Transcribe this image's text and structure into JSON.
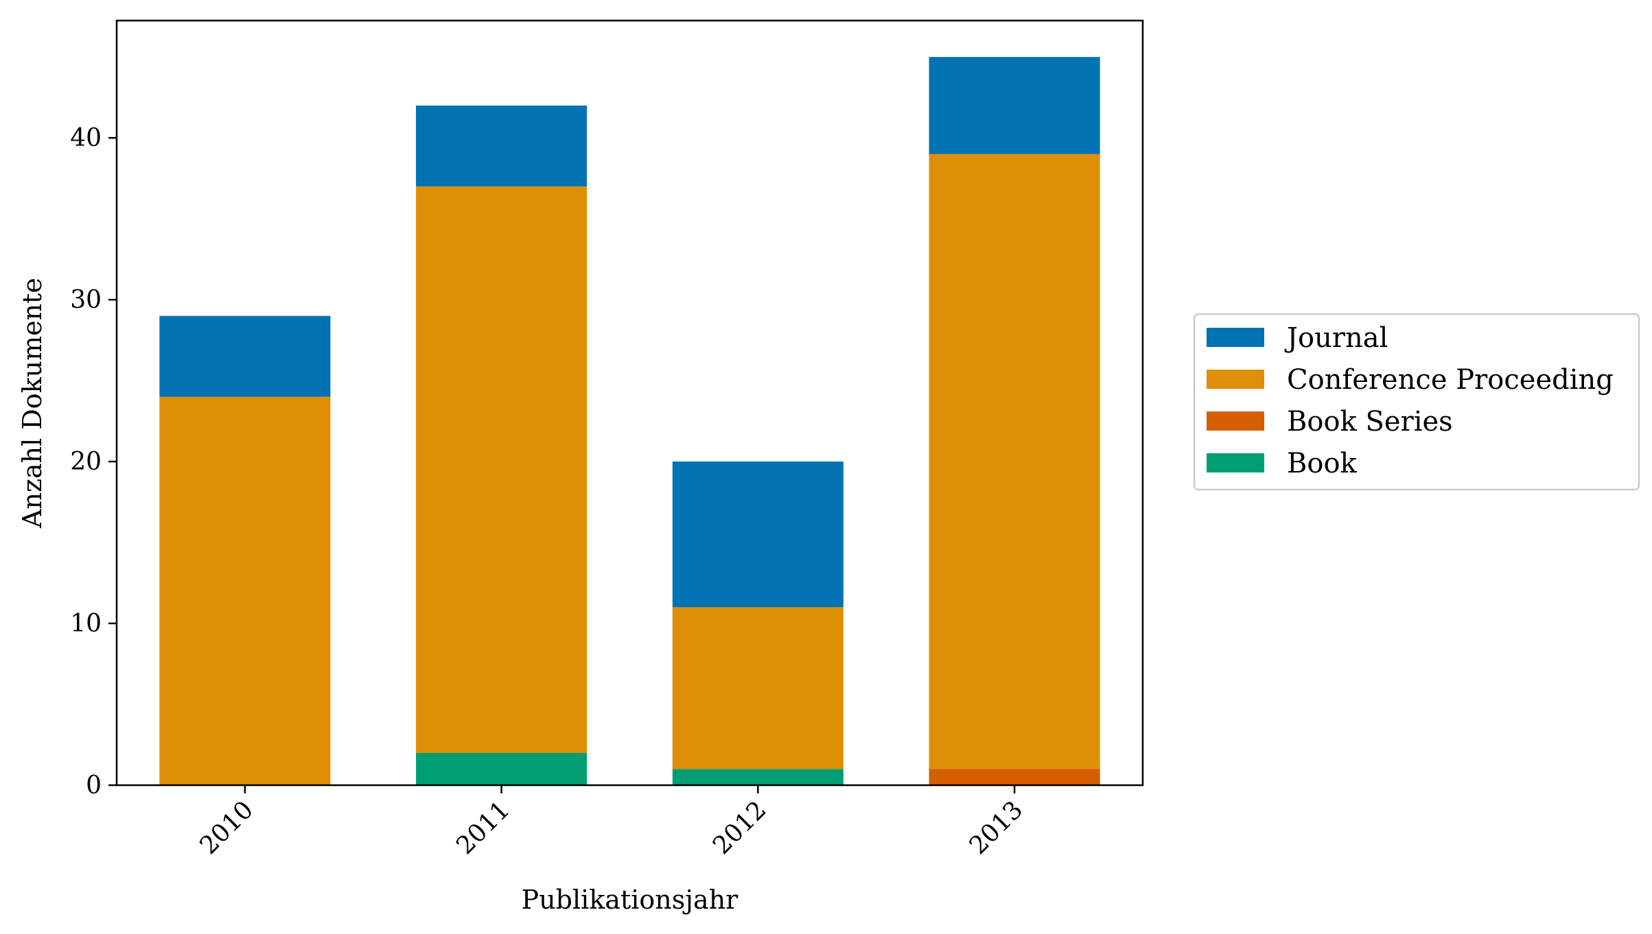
{
  "chart_data": {
    "type": "bar",
    "stacked": true,
    "categories": [
      "2010",
      "2011",
      "2012",
      "2013"
    ],
    "series": [
      {
        "name": "Book",
        "color": "#029E73",
        "values": [
          0,
          2,
          1,
          0
        ]
      },
      {
        "name": "Book Series",
        "color": "#D55E00",
        "values": [
          0,
          0,
          0,
          1
        ]
      },
      {
        "name": "Conference Proceeding",
        "color": "#DE8F05",
        "values": [
          24,
          35,
          10,
          38
        ]
      },
      {
        "name": "Journal",
        "color": "#0173B2",
        "values": [
          5,
          5,
          9,
          6
        ]
      }
    ],
    "legend_order": [
      "Journal",
      "Conference Proceeding",
      "Book Series",
      "Book"
    ],
    "xlabel": "Publikationsjahr",
    "ylabel": "Anzahl Dokumente",
    "ylim": [
      0,
      47.25
    ],
    "yticks": [
      0,
      10,
      20,
      30,
      40
    ],
    "xtick_rotation": 45,
    "grid": false,
    "legend_position": "outside-right"
  }
}
